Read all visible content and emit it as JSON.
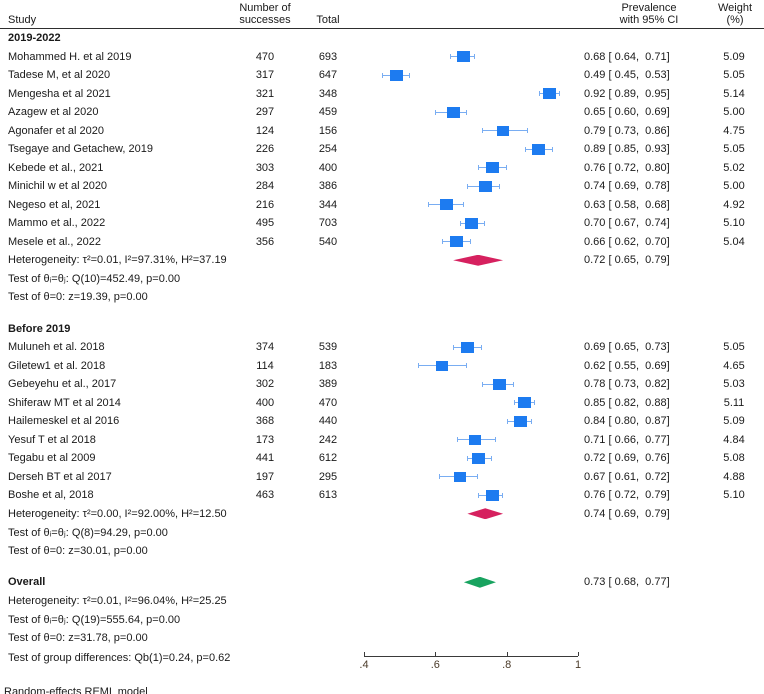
{
  "table": {
    "col_study": "Study",
    "col_successes_line1": "Number of",
    "col_successes_line2": "successes",
    "col_total": "Total",
    "col_prevalence_line1": "Prevalence",
    "col_prevalence_line2": "with 95% CI",
    "col_weight_line1": "Weight",
    "col_weight_line2": "(%)"
  },
  "chart_data": {
    "type": "forest",
    "xlabel": "Prevalence",
    "xlim": [
      0.4,
      1.0
    ],
    "xticks": [
      {
        "value": 0.4,
        "label": ".4"
      },
      {
        "value": 0.6,
        "label": ".6"
      },
      {
        "value": 0.8,
        "label": ".8"
      },
      {
        "value": 1.0,
        "label": "1"
      }
    ],
    "colors": {
      "study_marker": "#1d7bf0",
      "whisker": "#79adf2",
      "group_summary": "#d6215f",
      "overall_summary": "#18a35f",
      "text": "#1a1a1a"
    },
    "groups": [
      {
        "label": "2019-2022",
        "studies": [
          {
            "name": "Mohammed H. et al 2019",
            "successes": 470,
            "total": 693,
            "est": 0.68,
            "lo": 0.64,
            "hi": 0.71,
            "ci_label": "0.68 [ 0.64,  0.71]",
            "weight": "5.09"
          },
          {
            "name": "Tadese M, et al 2020",
            "successes": 317,
            "total": 647,
            "est": 0.49,
            "lo": 0.45,
            "hi": 0.53,
            "ci_label": "0.49 [ 0.45,  0.53]",
            "weight": "5.05"
          },
          {
            "name": "Mengesha et al 2021",
            "successes": 321,
            "total": 348,
            "est": 0.92,
            "lo": 0.89,
            "hi": 0.95,
            "ci_label": "0.92 [ 0.89,  0.95]",
            "weight": "5.14"
          },
          {
            "name": "Azagew et al 2020",
            "successes": 297,
            "total": 459,
            "est": 0.65,
            "lo": 0.6,
            "hi": 0.69,
            "ci_label": "0.65 [ 0.60,  0.69]",
            "weight": "5.00"
          },
          {
            "name": "Agonafer et al 2020",
            "successes": 124,
            "total": 156,
            "est": 0.79,
            "lo": 0.73,
            "hi": 0.86,
            "ci_label": "0.79 [ 0.73,  0.86]",
            "weight": "4.75"
          },
          {
            "name": "Tsegaye and Getachew, 2019",
            "successes": 226,
            "total": 254,
            "est": 0.89,
            "lo": 0.85,
            "hi": 0.93,
            "ci_label": "0.89 [ 0.85,  0.93]",
            "weight": "5.05"
          },
          {
            "name": "Kebede et al., 2021",
            "successes": 303,
            "total": 400,
            "est": 0.76,
            "lo": 0.72,
            "hi": 0.8,
            "ci_label": "0.76 [ 0.72,  0.80]",
            "weight": "5.02"
          },
          {
            "name": "Minichil w et al 2020",
            "successes": 284,
            "total": 386,
            "est": 0.74,
            "lo": 0.69,
            "hi": 0.78,
            "ci_label": "0.74 [ 0.69,  0.78]",
            "weight": "5.00"
          },
          {
            "name": "Negeso et al, 2021",
            "successes": 216,
            "total": 344,
            "est": 0.63,
            "lo": 0.58,
            "hi": 0.68,
            "ci_label": "0.63 [ 0.58,  0.68]",
            "weight": "4.92"
          },
          {
            "name": "Mammo et al., 2022",
            "successes": 495,
            "total": 703,
            "est": 0.7,
            "lo": 0.67,
            "hi": 0.74,
            "ci_label": "0.70 [ 0.67,  0.74]",
            "weight": "5.10"
          },
          {
            "name": "Mesele et al., 2022",
            "successes": 356,
            "total": 540,
            "est": 0.66,
            "lo": 0.62,
            "hi": 0.7,
            "ci_label": "0.66 [ 0.62,  0.70]",
            "weight": "5.04"
          }
        ],
        "summary": {
          "est": 0.72,
          "lo": 0.65,
          "hi": 0.79,
          "ci_label": "0.72 [ 0.65,  0.79]"
        },
        "heterogeneity": "Heterogeneity: τ²=0.01, I²=97.31%, H²=37.19",
        "test_theta_ij": "Test of θᵢ=θⱼ: Q(10)=452.49, p=0.00",
        "test_theta_zero": "Test of θ=0: z=19.39, p=0.00"
      },
      {
        "label": "Before 2019",
        "studies": [
          {
            "name": "Muluneh et al. 2018",
            "successes": 374,
            "total": 539,
            "est": 0.69,
            "lo": 0.65,
            "hi": 0.73,
            "ci_label": "0.69 [ 0.65,  0.73]",
            "weight": "5.05"
          },
          {
            "name": "Giletew1 et al. 2018",
            "successes": 114,
            "total": 183,
            "est": 0.62,
            "lo": 0.55,
            "hi": 0.69,
            "ci_label": "0.62 [ 0.55,  0.69]",
            "weight": "4.65"
          },
          {
            "name": "Gebeyehu et al., 2017",
            "successes": 302,
            "total": 389,
            "est": 0.78,
            "lo": 0.73,
            "hi": 0.82,
            "ci_label": "0.78 [ 0.73,  0.82]",
            "weight": "5.03"
          },
          {
            "name": "Shiferaw MT et al 2014",
            "successes": 400,
            "total": 470,
            "est": 0.85,
            "lo": 0.82,
            "hi": 0.88,
            "ci_label": "0.85 [ 0.82,  0.88]",
            "weight": "5.11"
          },
          {
            "name": "Hailemeskel et al 2016",
            "successes": 368,
            "total": 440,
            "est": 0.84,
            "lo": 0.8,
            "hi": 0.87,
            "ci_label": "0.84 [ 0.80,  0.87]",
            "weight": "5.09"
          },
          {
            "name": "Yesuf T et al 2018",
            "successes": 173,
            "total": 242,
            "est": 0.71,
            "lo": 0.66,
            "hi": 0.77,
            "ci_label": "0.71 [ 0.66,  0.77]",
            "weight": "4.84"
          },
          {
            "name": "Tegabu et al 2009",
            "successes": 441,
            "total": 612,
            "est": 0.72,
            "lo": 0.69,
            "hi": 0.76,
            "ci_label": "0.72 [ 0.69,  0.76]",
            "weight": "5.08"
          },
          {
            "name": "Derseh BT et al 2017",
            "successes": 197,
            "total": 295,
            "est": 0.67,
            "lo": 0.61,
            "hi": 0.72,
            "ci_label": "0.67 [ 0.61,  0.72]",
            "weight": "4.88"
          },
          {
            "name": "Boshe et al, 2018",
            "successes": 463,
            "total": 613,
            "est": 0.76,
            "lo": 0.72,
            "hi": 0.79,
            "ci_label": "0.76 [ 0.72,  0.79]",
            "weight": "5.10"
          }
        ],
        "summary": {
          "est": 0.74,
          "lo": 0.69,
          "hi": 0.79,
          "ci_label": "0.74 [ 0.69,  0.79]"
        },
        "heterogeneity": "Heterogeneity: τ²=0.00, I²=92.00%, H²=12.50",
        "test_theta_ij": "Test of θᵢ=θⱼ: Q(8)=94.29, p=0.00",
        "test_theta_zero": "Test of θ=0: z=30.01, p=0.00"
      }
    ],
    "overall": {
      "label": "Overall",
      "summary": {
        "est": 0.73,
        "lo": 0.68,
        "hi": 0.77,
        "ci_label": "0.73 [ 0.68,  0.77]"
      },
      "heterogeneity": "Heterogeneity: τ²=0.01, I²=96.04%, H²=25.25",
      "test_theta_ij": "Test of θᵢ=θⱼ: Q(19)=555.64, p=0.00",
      "test_theta_zero": "Test of θ=0: z=31.78, p=0.00"
    },
    "group_difference_test": "Test of group differences: Qb(1)=0.24, p=0.62",
    "footnote": "Random-effects REML model"
  }
}
